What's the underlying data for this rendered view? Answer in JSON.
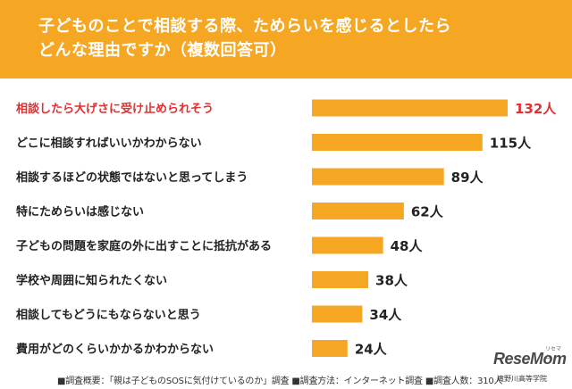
{
  "title_lines": [
    "子どものことで相談する際、ためらいを感じるとしたら",
    "どんな理由ですか（複数回答可）"
  ],
  "colors": {
    "header_bg": "#f5a623",
    "bar": "#f5a623",
    "highlight_label": "#e03030",
    "label": "#222222"
  },
  "chart_data": {
    "type": "bar",
    "orientation": "horizontal",
    "categories": [
      "相談したら大げさに受け止められそう",
      "どこに相談すればいいかわからない",
      "相談するほどの状態ではないと思ってしまう",
      "特にためらいは感じない",
      "子どもの問題を家庭の外に出すことに抵抗がある",
      "学校や周囲に知られたくない",
      "相談してもどうにもならないと思う",
      "費用がどのくらいかかるかわからない"
    ],
    "values": [
      132,
      115,
      89,
      62,
      48,
      38,
      34,
      24
    ],
    "value_labels": [
      "132人",
      "115人",
      "89人",
      "62人",
      "48人",
      "38人",
      "34人",
      "24人"
    ],
    "highlight_index": 0,
    "xlim": [
      0,
      132
    ],
    "grid": false,
    "legend": "none"
  },
  "footnote": "■調査概要：「親は子どものSOSに気付けているのか」調査 ■調査方法：インターネット調査 ■調査人数：310人",
  "credit": "滝野川高等学院",
  "logo": {
    "text": "ReseMom",
    "small": "リセマム"
  }
}
